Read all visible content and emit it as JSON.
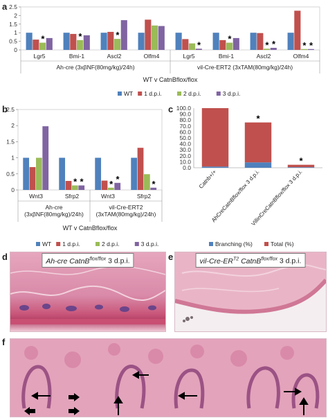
{
  "panels": {
    "a": "a",
    "b": "b",
    "c": "c",
    "d": "d",
    "e": "e",
    "f": "f"
  },
  "colors": {
    "wt": "#4f81bd",
    "d1": "#c0504d",
    "d2": "#9bbb59",
    "d3": "#8064a2",
    "branching": "#4f81bd",
    "total": "#c0504d",
    "histo_bg": "#e9b7c9",
    "histo_deep": "#c9567a"
  },
  "legend_ab": {
    "wt": "WT",
    "d1": "1 d.p.i.",
    "d2": "2 d.p.i.",
    "d3": "3 d.p.i."
  },
  "chart_data": [
    {
      "id": "a",
      "type": "bar",
      "ylim": [
        0,
        2.5
      ],
      "yticks": [
        "0",
        "0.5",
        "1",
        "1.5",
        "2",
        "2.5"
      ],
      "categories": [
        "Lgr5",
        "Bmi-1",
        "Ascl2",
        "Olfm4",
        "Lgr5",
        "Bmi-1",
        "Ascl2",
        "Olfm4"
      ],
      "groups": [
        "Ah-cre (3xβNF(80mg/kg)/24h)",
        "vil-Cre-ERT2 (3xTAM(80mg/kg)/24h)"
      ],
      "xlabel": "WT v CatnBflox/flox",
      "series": [
        {
          "name": "WT",
          "values": [
            1.0,
            1.0,
            1.0,
            1.0,
            1.0,
            1.0,
            1.0,
            1.0
          ]
        },
        {
          "name": "1 d.p.i.",
          "values": [
            0.6,
            0.93,
            1.05,
            1.76,
            0.63,
            0.57,
            0.98,
            2.28
          ]
        },
        {
          "name": "2 d.p.i.",
          "values": [
            0.42,
            0.57,
            0.64,
            1.42,
            0.38,
            0.42,
            0.07,
            0.05
          ]
        },
        {
          "name": "3 d.p.i.",
          "values": [
            0.69,
            0.85,
            1.73,
            1.39,
            0.07,
            0.69,
            0.12,
            0.05
          ]
        }
      ],
      "stars": [
        [
          0,
          2
        ],
        [
          1,
          2
        ],
        [
          2,
          2
        ],
        [
          4,
          3
        ],
        [
          5,
          2
        ],
        [
          6,
          2
        ],
        [
          6,
          3
        ],
        [
          7,
          2
        ],
        [
          7,
          3
        ]
      ],
      "star": "*"
    },
    {
      "id": "b",
      "type": "bar",
      "ylim": [
        0,
        2.5
      ],
      "yticks": [
        "0",
        "0.5",
        "1",
        "1.5",
        "2",
        "2.5"
      ],
      "categories": [
        "Wnt3",
        "Sfrp2",
        "Wnt3",
        "Sfrp2"
      ],
      "groups": [
        "Ah-cre\n(3xβNF(80mg/kg)/24h)",
        "vil-Cre-ERT2\n(3xTAM(80mg/kg)/24h)"
      ],
      "xlabel": "WT v CatnBflox/flox",
      "series": [
        {
          "name": "WT",
          "values": [
            1.0,
            1.0,
            1.0,
            1.0
          ]
        },
        {
          "name": "1 d.p.i.",
          "values": [
            0.71,
            0.28,
            0.29,
            1.31
          ]
        },
        {
          "name": "2 d.p.i.",
          "values": [
            1.0,
            0.14,
            0.07,
            0.49
          ]
        },
        {
          "name": "3 d.p.i.",
          "values": [
            1.98,
            0.14,
            0.22,
            0.07
          ]
        }
      ],
      "stars": [
        [
          1,
          2
        ],
        [
          1,
          3
        ],
        [
          2,
          2
        ],
        [
          2,
          3
        ],
        [
          3,
          3
        ]
      ],
      "star": "*"
    },
    {
      "id": "c",
      "type": "bar",
      "stacked": true,
      "ylim": [
        0,
        100
      ],
      "yticks": [
        "0.0",
        "10.0",
        "20.0",
        "30.0",
        "40.0",
        "50.0",
        "60.0",
        "70.0",
        "80.0",
        "90.0",
        "100.0"
      ],
      "categories": [
        "Catnb+/+",
        "AhCreCatnBflox/flox 3 d.p.i.",
        "VillinCreCatnBflox/flox 3 d.p.i."
      ],
      "series": [
        {
          "name": "Branching (%)",
          "values": [
            2,
            9,
            1
          ]
        },
        {
          "name": "Total (%)",
          "values": [
            98,
            67,
            4
          ]
        }
      ],
      "stars": [
        1,
        2
      ],
      "star": "*"
    }
  ],
  "histology": {
    "d": {
      "pre": "Ah-cre CatnB",
      "sup": "flox/flox",
      "post": " 3 d.p.i."
    },
    "e": {
      "pre": "vil-Cre-ER",
      "sup1": "T2",
      "mid": " CatnB",
      "sup2": "flox/flox",
      "post": " 3 d.p.i."
    }
  }
}
